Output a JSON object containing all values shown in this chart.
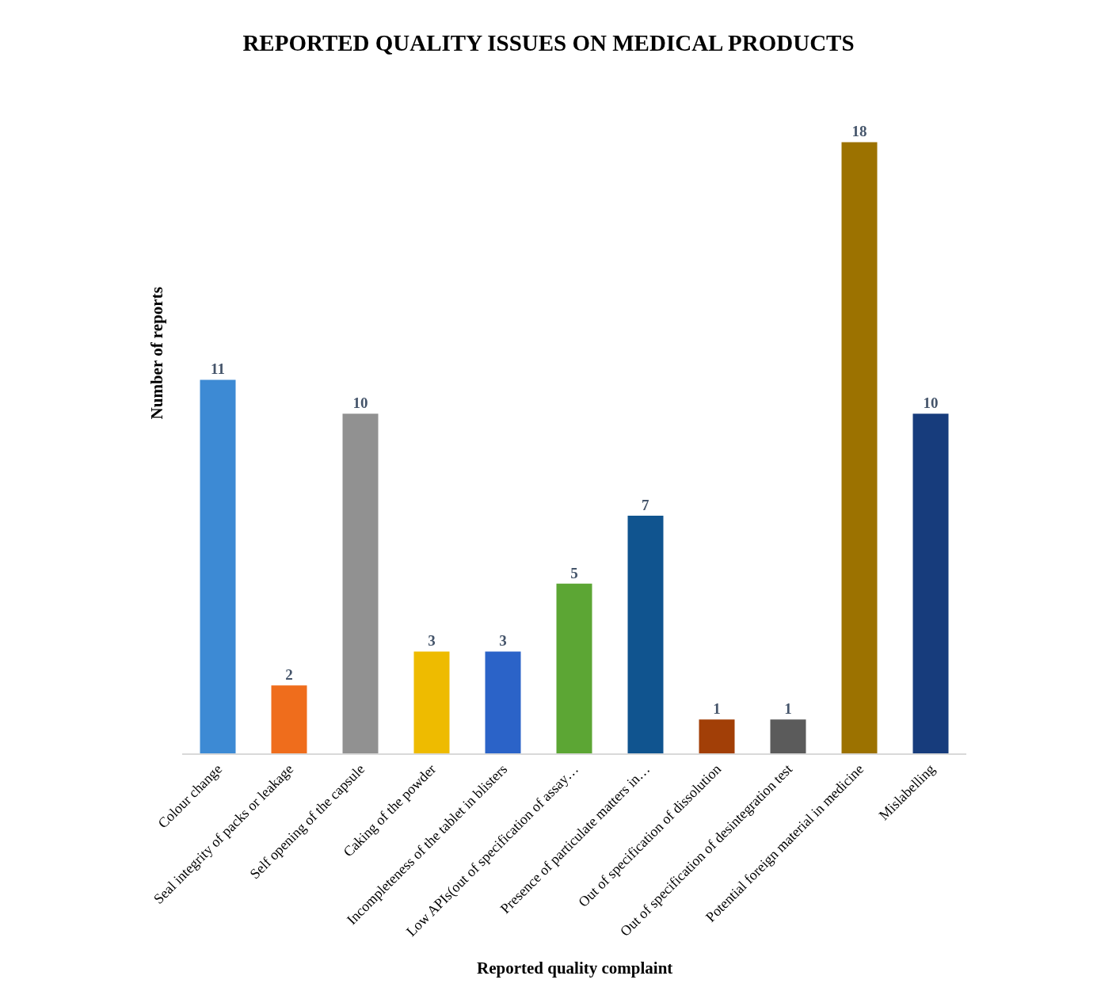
{
  "chart_data": {
    "type": "bar",
    "title": "REPORTED QUALITY ISSUES ON MEDICAL PRODUCTS",
    "xlabel": "Reported quality complaint",
    "ylabel": "Number of reports",
    "categories": [
      "Colour change",
      "Seal integrity of packs or leakage",
      "Self opening of the capsule",
      "Caking of the powder",
      "Incompleteness of the tablet in blisters",
      "Low APIs(out of specification of assay…",
      "Presence of particulate matters in…",
      "Out of specification of dissolution",
      "Out of specification of desintegration test",
      "Potential foreign material in medicine",
      "Mislabelling"
    ],
    "values": [
      11,
      2,
      10,
      3,
      3,
      5,
      7,
      1,
      1,
      18,
      10
    ],
    "colors": [
      "#3d8ad4",
      "#ef6d1c",
      "#919191",
      "#eebb00",
      "#2b63c8",
      "#5ca634",
      "#10548f",
      "#a23f07",
      "#5b5b5b",
      "#9c7200",
      "#173c7c"
    ],
    "data_labels": true
  }
}
